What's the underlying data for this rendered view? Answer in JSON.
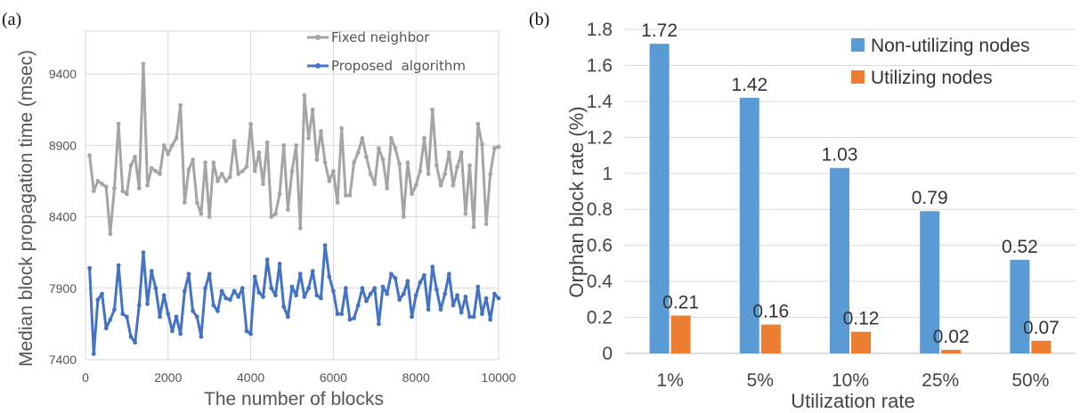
{
  "chart_data": [
    {
      "panel": "(a)",
      "type": "line",
      "xlabel": "The number of blocks",
      "ylabel": "Median block propagation time (msec)",
      "xlim": [
        0,
        10000
      ],
      "ylim": [
        7400,
        9700
      ],
      "xticks": [
        0,
        2000,
        4000,
        6000,
        8000,
        10000
      ],
      "yticks": [
        7400,
        7900,
        8400,
        8900,
        9400
      ],
      "grid": true,
      "legend_position": "top-right",
      "colors": {
        "fixed": "#a5a5a5",
        "proposed": "#4472c4"
      },
      "series": [
        {
          "name": "Fixed neighbor",
          "x": [
            100,
            200,
            300,
            400,
            500,
            600,
            700,
            800,
            900,
            1000,
            1100,
            1200,
            1300,
            1400,
            1500,
            1600,
            1700,
            1800,
            1900,
            2000,
            2100,
            2200,
            2300,
            2400,
            2500,
            2600,
            2700,
            2800,
            2900,
            3000,
            3100,
            3200,
            3300,
            3400,
            3500,
            3600,
            3700,
            3800,
            3900,
            4000,
            4100,
            4200,
            4300,
            4400,
            4500,
            4600,
            4700,
            4800,
            4900,
            5000,
            5100,
            5200,
            5300,
            5400,
            5500,
            5600,
            5700,
            5800,
            5900,
            6000,
            6100,
            6200,
            6300,
            6400,
            6500,
            6600,
            6700,
            6800,
            6900,
            7000,
            7100,
            7200,
            7300,
            7400,
            7500,
            7600,
            7700,
            7800,
            7900,
            8000,
            8100,
            8200,
            8300,
            8400,
            8500,
            8600,
            8700,
            8800,
            8900,
            9000,
            9100,
            9200,
            9300,
            9400,
            9500,
            9600,
            9700,
            9800,
            9900,
            10000
          ],
          "values": [
            8830,
            8580,
            8650,
            8630,
            8610,
            8280,
            8600,
            9050,
            8580,
            8560,
            8760,
            8820,
            8600,
            9470,
            8620,
            8740,
            8720,
            8700,
            8900,
            8840,
            8900,
            8950,
            9180,
            8500,
            8730,
            8800,
            8500,
            8420,
            8780,
            8400,
            8780,
            8650,
            8700,
            8650,
            8680,
            8930,
            8700,
            8720,
            8750,
            9050,
            8720,
            8850,
            8630,
            8920,
            8400,
            8420,
            8560,
            8900,
            8450,
            8720,
            8900,
            8320,
            9250,
            8950,
            9150,
            8800,
            9000,
            8780,
            8650,
            8720,
            8500,
            9020,
            8550,
            8550,
            8780,
            8850,
            8950,
            8820,
            8700,
            8630,
            8880,
            8800,
            8600,
            8950,
            8880,
            8770,
            8400,
            8780,
            8560,
            8620,
            8720,
            8950,
            8700,
            9150,
            8760,
            8620,
            8700,
            8850,
            8620,
            8750,
            8850,
            8420,
            8760,
            8330,
            9050,
            8910,
            8350,
            8700,
            8880,
            8890
          ]
        },
        {
          "name": "Proposed  algorithm",
          "x": [
            100,
            200,
            300,
            400,
            500,
            600,
            700,
            800,
            900,
            1000,
            1100,
            1200,
            1300,
            1400,
            1500,
            1600,
            1700,
            1800,
            1900,
            2000,
            2100,
            2200,
            2300,
            2400,
            2500,
            2600,
            2700,
            2800,
            2900,
            3000,
            3100,
            3200,
            3300,
            3400,
            3500,
            3600,
            3700,
            3800,
            3900,
            4000,
            4100,
            4200,
            4300,
            4400,
            4500,
            4600,
            4700,
            4800,
            4900,
            5000,
            5100,
            5200,
            5300,
            5400,
            5500,
            5600,
            5700,
            5800,
            5900,
            6000,
            6100,
            6200,
            6300,
            6400,
            6500,
            6600,
            6700,
            6800,
            6900,
            7000,
            7100,
            7200,
            7300,
            7400,
            7500,
            7600,
            7700,
            7800,
            7900,
            8000,
            8100,
            8200,
            8300,
            8400,
            8500,
            8600,
            8700,
            8800,
            8900,
            9000,
            9100,
            9200,
            9300,
            9400,
            9500,
            9600,
            9700,
            9800,
            9900,
            10000
          ],
          "values": [
            8040,
            7440,
            7820,
            7860,
            7620,
            7680,
            7750,
            8060,
            7720,
            7700,
            7560,
            7520,
            7780,
            8150,
            7790,
            8020,
            7900,
            7700,
            7850,
            7720,
            7600,
            7700,
            7580,
            7880,
            8000,
            7740,
            7700,
            7560,
            7900,
            8000,
            7780,
            7740,
            7880,
            7830,
            7820,
            7880,
            7840,
            7900,
            7600,
            7580,
            7980,
            7870,
            7840,
            8100,
            7900,
            7850,
            8070,
            7770,
            7700,
            7910,
            7850,
            8000,
            7840,
            7900,
            8020,
            7850,
            7830,
            8200,
            7980,
            7880,
            7720,
            7720,
            7900,
            7680,
            7690,
            7780,
            7900,
            7810,
            7860,
            7900,
            7650,
            7910,
            7860,
            8000,
            7970,
            7820,
            7860,
            7950,
            7700,
            7850,
            7940,
            7990,
            7750,
            8050,
            7890,
            7750,
            7860,
            8000,
            7780,
            7850,
            7730,
            7840,
            7700,
            7700,
            7910,
            7720,
            7830,
            7680,
            7860,
            7830
          ]
        }
      ]
    },
    {
      "panel": "(b)",
      "type": "bar",
      "xlabel": "Utilization rate",
      "ylabel": "Orphan block rate (%)",
      "categories": [
        "1%",
        "5%",
        "10%",
        "25%",
        "50%"
      ],
      "ylim": [
        0,
        1.8
      ],
      "yticks": [
        "0",
        "0.2",
        "0.4",
        "0.6",
        "0.8",
        "1",
        "1.2",
        "1.4",
        "1.6",
        "1.8"
      ],
      "grid": true,
      "legend_position": "top-right",
      "series": [
        {
          "name": "Non-utilizing nodes",
          "color": "#5b9bd5",
          "values": [
            1.72,
            1.42,
            1.03,
            0.79,
            0.52
          ],
          "labels": [
            "1.72",
            "1.42",
            "1.03",
            "0.79",
            "0.52"
          ]
        },
        {
          "name": "Utilizing nodes",
          "color": "#ed7d31",
          "values": [
            0.21,
            0.16,
            0.12,
            0.02,
            0.07
          ],
          "labels": [
            "0.21",
            "0.16",
            "0.12",
            "0.02",
            "0.07"
          ]
        }
      ]
    }
  ]
}
